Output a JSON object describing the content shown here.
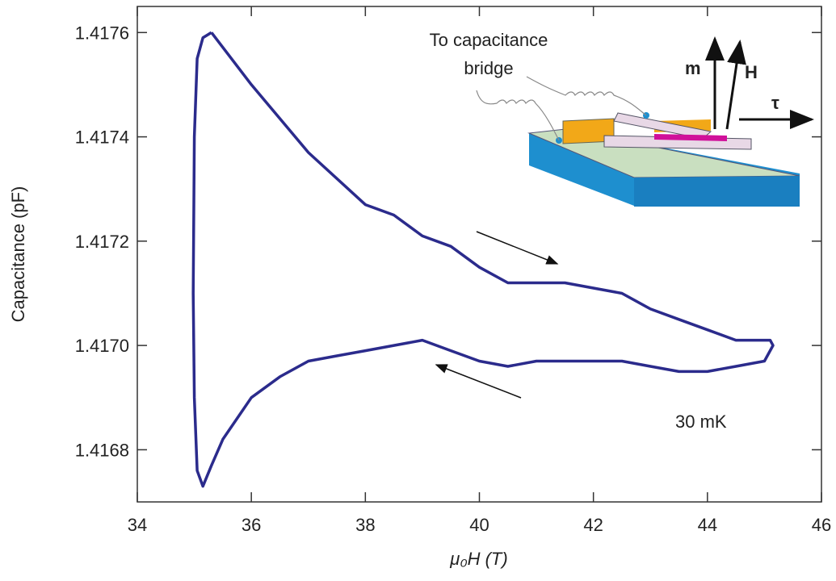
{
  "chart_data": {
    "type": "line",
    "xlabel": "μ₀H (T)",
    "ylabel": "Capacitance (pF)",
    "color": "#2b2b8c",
    "x": [
      35.3,
      36,
      37,
      38,
      38.5,
      39,
      39.5,
      40,
      40.5,
      41,
      41.5,
      42,
      42.5,
      43,
      43.5,
      44,
      44.5,
      45.1,
      45.15,
      45,
      44.5,
      44,
      43.5,
      43,
      42.5,
      42,
      41,
      40.5,
      40,
      39.5,
      39,
      38.5,
      38,
      37.5,
      37,
      36.5,
      36,
      35.5,
      35.3,
      35.15,
      35.05,
      35.0,
      34.98,
      35.0,
      35.05,
      35.15,
      35.3
    ],
    "values": [
      1.4176,
      1.4175,
      1.41737,
      1.41727,
      1.41725,
      1.41721,
      1.41719,
      1.41715,
      1.41712,
      1.41712,
      1.41712,
      1.41711,
      1.4171,
      1.41707,
      1.41705,
      1.41703,
      1.41701,
      1.41701,
      1.417,
      1.41697,
      1.41696,
      1.41695,
      1.41695,
      1.41696,
      1.41697,
      1.41697,
      1.41697,
      1.41696,
      1.41697,
      1.41699,
      1.41701,
      1.417,
      1.41699,
      1.41698,
      1.41697,
      1.41694,
      1.4169,
      1.41682,
      1.41677,
      1.41673,
      1.41676,
      1.4169,
      1.4171,
      1.4174,
      1.41755,
      1.41759,
      1.4176
    ],
    "xlim": [
      34,
      46
    ],
    "xticks": [
      34,
      36,
      38,
      40,
      42,
      44,
      46
    ],
    "ylim": [
      1.4167,
      1.41765
    ],
    "yticks": [
      1.4168,
      {
        "value": 1.417,
        "label": "1.4170"
      },
      1.4172,
      1.4174,
      1.4176
    ],
    "annotations": [
      "30 mK",
      "To capacitance",
      "bridge",
      "m",
      "H",
      "τ"
    ]
  }
}
